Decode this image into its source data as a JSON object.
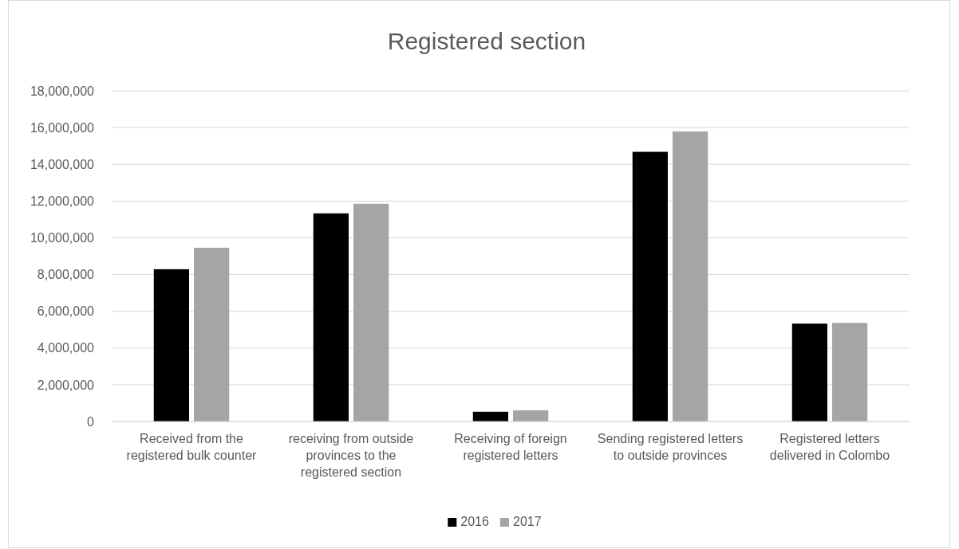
{
  "chart_data": {
    "type": "bar",
    "title": "Registered section",
    "categories": [
      "Received from the registered bulk counter",
      "receiving from outside provinces to the registered section",
      "Receiving of foreign registered letters",
      "Sending registered letters to outside provinces",
      "Registered letters delivered in Colombo"
    ],
    "series": [
      {
        "name": "2016",
        "color": "#000000",
        "values": [
          8290000,
          11330000,
          530000,
          14680000,
          5330000
        ]
      },
      {
        "name": "2017",
        "color": "#a5a5a5",
        "values": [
          9460000,
          11850000,
          610000,
          15790000,
          5370000
        ]
      }
    ],
    "ylim": [
      0,
      18000000
    ],
    "yticks": [
      {
        "value": 0,
        "label": "0"
      },
      {
        "value": 2000000,
        "label": "2,000,000"
      },
      {
        "value": 4000000,
        "label": "4,000,000"
      },
      {
        "value": 6000000,
        "label": "6,000,000"
      },
      {
        "value": 8000000,
        "label": "8,000,000"
      },
      {
        "value": 10000000,
        "label": "10,000,000"
      },
      {
        "value": 12000000,
        "label": "12,000,000"
      },
      {
        "value": 14000000,
        "label": "14,000,000"
      },
      {
        "value": 16000000,
        "label": "16,000,000"
      },
      {
        "value": 18000000,
        "label": "18,000,000"
      }
    ],
    "grid": "y",
    "legend": "bottom"
  }
}
